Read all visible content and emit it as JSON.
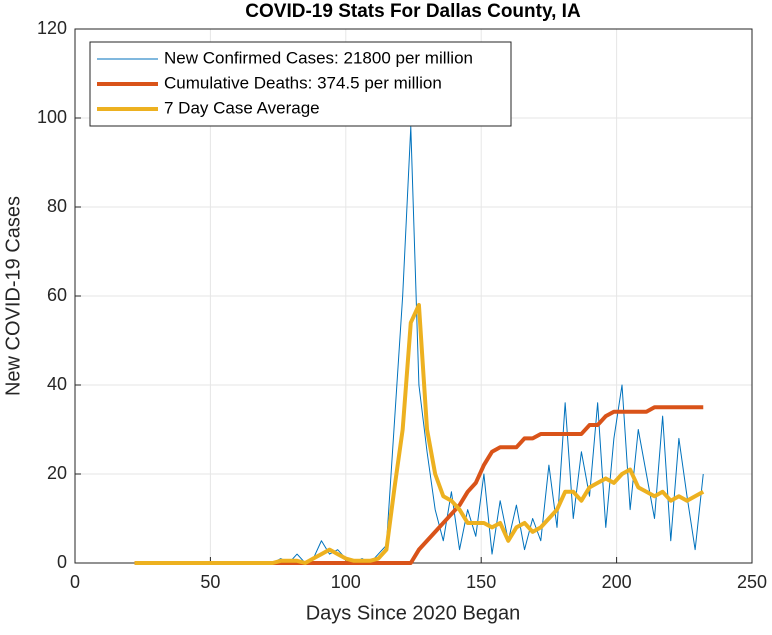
{
  "chart_data": {
    "type": "line",
    "title": "COVID-19 Stats For Dallas County, IA",
    "x_label": "Days Since 2020 Began",
    "y_label": "New COVID-19 Cases",
    "xlim": [
      0,
      250
    ],
    "xticks": [
      0,
      50,
      100,
      150,
      200,
      250
    ],
    "ylim": [
      0,
      120
    ],
    "yticks": [
      0,
      20,
      40,
      60,
      80,
      100,
      120
    ],
    "grid": true,
    "legend": "upper-left",
    "x": [
      22,
      25,
      28,
      31,
      34,
      37,
      40,
      43,
      46,
      49,
      52,
      55,
      58,
      61,
      64,
      67,
      70,
      73,
      76,
      79,
      82,
      85,
      88,
      91,
      94,
      97,
      100,
      103,
      106,
      109,
      112,
      115,
      118,
      121,
      124,
      127,
      130,
      133,
      136,
      139,
      142,
      145,
      148,
      151,
      154,
      157,
      160,
      163,
      166,
      169,
      172,
      175,
      178,
      181,
      184,
      187,
      190,
      193,
      196,
      199,
      202,
      205,
      208,
      211,
      214,
      217,
      220,
      223,
      226,
      229,
      232
    ],
    "series": [
      {
        "name": "New Confirmed Cases: 21800 per million",
        "color": "#0072BD",
        "width": 1,
        "values": [
          0,
          0,
          0,
          0,
          0,
          0,
          0,
          0,
          0,
          0,
          0,
          0,
          0,
          0,
          0,
          0,
          0,
          0,
          1,
          0,
          2,
          0,
          1,
          5,
          2,
          3,
          1,
          0,
          1,
          0,
          2,
          4,
          32,
          60,
          98,
          40,
          25,
          12,
          5,
          16,
          3,
          12,
          6,
          20,
          2,
          14,
          5,
          13,
          3,
          10,
          5,
          22,
          8,
          36,
          10,
          25,
          15,
          36,
          8,
          28,
          40,
          12,
          30,
          20,
          10,
          33,
          5,
          28,
          15,
          3,
          20
        ]
      },
      {
        "name": "Cumulative Deaths: 374.5 per million",
        "color": "#D95319",
        "width": 4,
        "values": [
          0,
          0,
          0,
          0,
          0,
          0,
          0,
          0,
          0,
          0,
          0,
          0,
          0,
          0,
          0,
          0,
          0,
          0,
          0,
          0,
          0,
          0,
          0,
          0,
          0,
          0,
          0,
          0,
          0,
          0,
          0,
          0,
          0,
          0,
          0,
          3,
          5,
          7,
          9,
          11,
          13,
          16,
          18,
          22,
          25,
          26,
          26,
          26,
          28,
          28,
          29,
          29,
          29,
          29,
          29,
          29,
          31,
          31,
          33,
          34,
          34,
          34,
          34,
          34,
          35,
          35,
          35,
          35,
          35,
          35,
          35
        ]
      },
      {
        "name": "7 Day Case Average",
        "color": "#EDB120",
        "width": 4,
        "values": [
          0,
          0,
          0,
          0,
          0,
          0,
          0,
          0,
          0,
          0,
          0,
          0,
          0,
          0,
          0,
          0,
          0,
          0,
          0.5,
          0.5,
          0.5,
          0,
          1,
          2,
          3,
          2,
          1,
          0.5,
          0.5,
          0.5,
          1,
          3,
          17,
          30,
          54,
          58,
          30,
          20,
          15,
          14,
          12,
          9,
          9,
          9,
          8,
          9,
          5,
          8,
          9,
          7,
          8,
          10,
          12,
          16,
          16,
          14,
          17,
          18,
          19,
          18,
          20,
          21,
          17,
          16,
          15,
          16,
          14,
          15,
          14,
          15,
          16
        ]
      }
    ]
  }
}
